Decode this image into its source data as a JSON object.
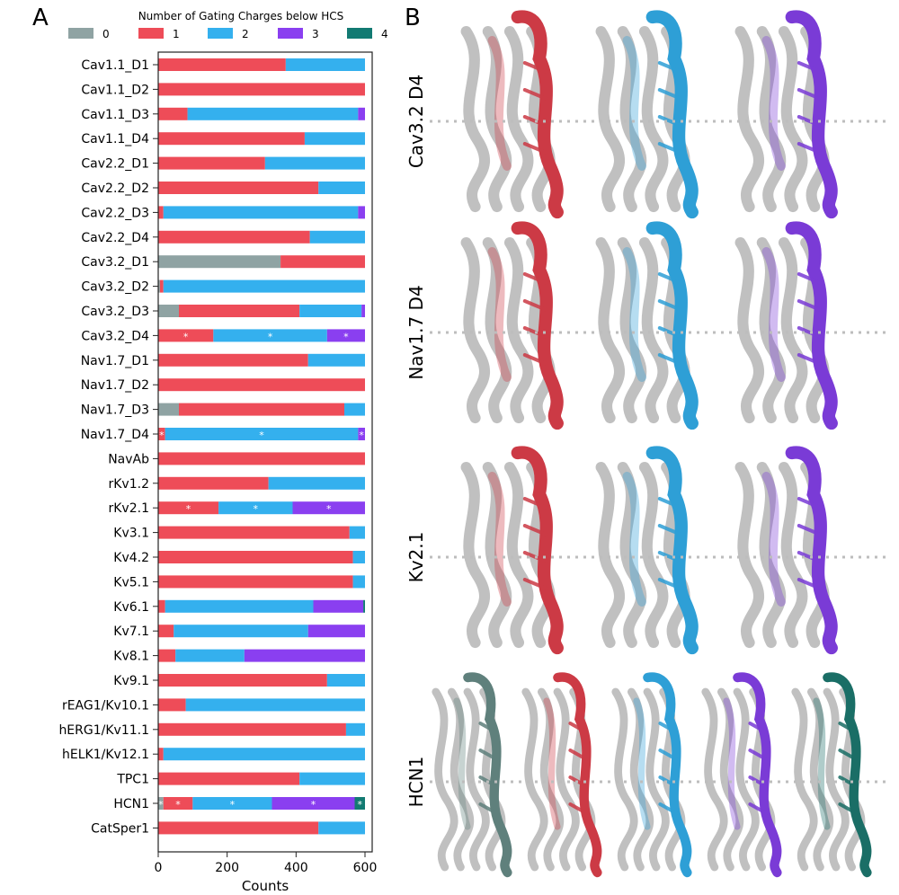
{
  "panels": {
    "a": "A",
    "b": "B"
  },
  "chart_data": {
    "type": "bar",
    "stacked": true,
    "orientation": "horizontal",
    "legend_title": "Number of Gating Charges below HCS",
    "xlabel": "Counts",
    "xlim": [
      0,
      600
    ],
    "xticks": [
      0,
      200,
      400,
      600
    ],
    "categories": [
      "Cav1.1_D1",
      "Cav1.1_D2",
      "Cav1.1_D3",
      "Cav1.1_D4",
      "Cav2.2_D1",
      "Cav2.2_D2",
      "Cav2.2_D3",
      "Cav2.2_D4",
      "Cav3.2_D1",
      "Cav3.2_D2",
      "Cav3.2_D3",
      "Cav3.2_D4",
      "Nav1.7_D1",
      "Nav1.7_D2",
      "Nav1.7_D3",
      "Nav1.7_D4",
      "NavAb",
      "rKv1.2",
      "rKv2.1",
      "Kv3.1",
      "Kv4.2",
      "Kv5.1",
      "Kv6.1",
      "Kv7.1",
      "Kv8.1",
      "Kv9.1",
      "rEAG1/Kv10.1",
      "hERG1/Kv11.1",
      "hELK1/Kv12.1",
      "TPC1",
      "HCN1",
      "CatSper1"
    ],
    "series": [
      {
        "name": "0",
        "color": "#8fa3a3",
        "values": [
          0,
          0,
          0,
          0,
          0,
          0,
          0,
          0,
          355,
          5,
          60,
          0,
          0,
          0,
          60,
          0,
          0,
          0,
          0,
          0,
          0,
          0,
          0,
          0,
          0,
          0,
          0,
          0,
          0,
          0,
          15,
          0
        ]
      },
      {
        "name": "1",
        "color": "#ee4c58",
        "values": [
          370,
          600,
          85,
          425,
          310,
          465,
          15,
          440,
          245,
          10,
          350,
          160,
          435,
          600,
          480,
          20,
          600,
          320,
          175,
          555,
          565,
          565,
          20,
          45,
          50,
          490,
          80,
          545,
          15,
          410,
          85,
          465
        ]
      },
      {
        "name": "2",
        "color": "#34b0ee",
        "values": [
          230,
          0,
          495,
          175,
          290,
          135,
          565,
          160,
          0,
          585,
          180,
          330,
          165,
          0,
          60,
          560,
          0,
          280,
          215,
          45,
          35,
          35,
          430,
          390,
          200,
          110,
          520,
          55,
          585,
          190,
          230,
          135
        ]
      },
      {
        "name": "3",
        "color": "#8a3ff0",
        "values": [
          0,
          0,
          20,
          0,
          0,
          0,
          20,
          0,
          0,
          0,
          10,
          110,
          0,
          0,
          0,
          20,
          0,
          0,
          210,
          0,
          0,
          0,
          145,
          165,
          350,
          0,
          0,
          0,
          0,
          0,
          240,
          0
        ]
      },
      {
        "name": "4",
        "color": "#127a72",
        "values": [
          0,
          0,
          0,
          0,
          0,
          0,
          0,
          0,
          0,
          0,
          0,
          0,
          0,
          0,
          0,
          0,
          0,
          0,
          0,
          0,
          0,
          0,
          5,
          0,
          0,
          0,
          0,
          0,
          0,
          0,
          30,
          0
        ]
      }
    ],
    "annotations": [
      {
        "category": "Cav3.2_D4",
        "series": [
          "1",
          "2",
          "3"
        ],
        "marker": "*"
      },
      {
        "category": "Nav1.7_D4",
        "series": [
          "1",
          "2",
          "3"
        ],
        "marker": "*"
      },
      {
        "category": "rKv2.1",
        "series": [
          "1",
          "2",
          "3"
        ],
        "marker": "*"
      },
      {
        "category": "HCN1",
        "series": [
          "0",
          "1",
          "2",
          "3",
          "4"
        ],
        "marker": "*"
      }
    ]
  },
  "structures": {
    "rows": [
      {
        "label": "Cav3.2 D4",
        "colors": [
          "#cc3a45",
          "#2e9fd6",
          "#7a3bd6"
        ]
      },
      {
        "label": "Nav1.7 D4",
        "colors": [
          "#cc3a45",
          "#2e9fd6",
          "#7a3bd6"
        ]
      },
      {
        "label": "Kv2.1",
        "colors": [
          "#cc3a45",
          "#2e9fd6",
          "#7a3bd6"
        ]
      },
      {
        "label": "HCN1",
        "colors": [
          "#5f807c",
          "#cc3a45",
          "#2e9fd6",
          "#7a3bd6",
          "#1a6e66"
        ]
      }
    ]
  }
}
